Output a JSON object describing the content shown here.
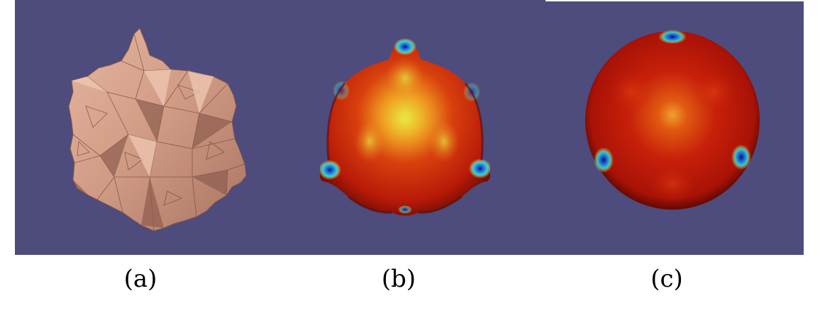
{
  "colors": {
    "background": "#4e4b7d",
    "mesh": "#d8a48e",
    "heat_high": "#c81e0a",
    "heat_mid": "#f0d020",
    "heat_low": "#1060c0"
  },
  "captions": {
    "a": "(a)",
    "b": "(b)",
    "c": "(c)"
  }
}
